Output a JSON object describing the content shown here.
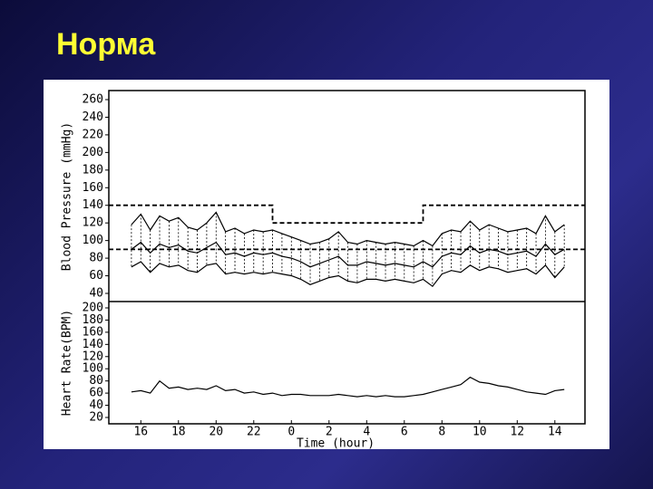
{
  "title": "Норма",
  "chart_data": [
    {
      "type": "line",
      "y_label": "Blood Pressure (mmHg)",
      "x": [
        15.5,
        16,
        16.5,
        17,
        17.5,
        18,
        18.5,
        19,
        19.5,
        20,
        20.5,
        21,
        21.5,
        22,
        22.5,
        23,
        23.5,
        24,
        24.5,
        25,
        25.5,
        26,
        26.5,
        27,
        27.5,
        28,
        28.5,
        29,
        29.5,
        30,
        30.5,
        31,
        31.5,
        32,
        32.5,
        33,
        33.5,
        34,
        34.5,
        35,
        35.5,
        36,
        36.5,
        37,
        37.5,
        38,
        38.5
      ],
      "series": [
        {
          "color": "#000000",
          "values": [
            118,
            130,
            112,
            128,
            122,
            126,
            115,
            112,
            120,
            132,
            110,
            114,
            108,
            112,
            110,
            112,
            108,
            104,
            100,
            96,
            98,
            102,
            110,
            98,
            96,
            100,
            98,
            96,
            98,
            96,
            94,
            100,
            94,
            108,
            112,
            110,
            122,
            112,
            118,
            114,
            110,
            112,
            114,
            108,
            128,
            110,
            118
          ]
        },
        {
          "color": "#000000",
          "values": [
            90,
            98,
            86,
            96,
            92,
            95,
            88,
            86,
            92,
            98,
            84,
            86,
            82,
            86,
            84,
            86,
            82,
            80,
            76,
            70,
            74,
            78,
            82,
            72,
            72,
            76,
            74,
            72,
            74,
            72,
            70,
            76,
            70,
            82,
            86,
            84,
            94,
            86,
            90,
            88,
            84,
            86,
            88,
            82,
            96,
            84,
            90
          ]
        },
        {
          "color": "#000000",
          "values": [
            70,
            76,
            64,
            74,
            70,
            72,
            66,
            64,
            72,
            74,
            62,
            64,
            62,
            64,
            62,
            64,
            62,
            60,
            56,
            50,
            54,
            58,
            60,
            54,
            52,
            56,
            56,
            54,
            56,
            54,
            52,
            56,
            48,
            62,
            66,
            64,
            72,
            66,
            70,
            68,
            64,
            66,
            68,
            62,
            72,
            58,
            70
          ]
        },
        {
          "color": "#000000",
          "dash": true,
          "x": [
            14.3,
            23,
            23,
            31,
            31,
            39.6
          ],
          "values": [
            140,
            140,
            120,
            120,
            140,
            140
          ]
        },
        {
          "color": "#000000",
          "dash": true,
          "x": [
            14.3,
            39.6
          ],
          "values": [
            90,
            90
          ]
        }
      ],
      "range_between": [
        0,
        2
      ],
      "xlim": [
        14.3,
        39.6
      ],
      "ylim": [
        40,
        260
      ],
      "yticks": [
        40,
        60,
        80,
        100,
        120,
        140,
        160,
        180,
        200,
        220,
        240,
        260
      ]
    },
    {
      "type": "line",
      "y_label": "Heart Rate(BPM)",
      "x_label": "Time (hour)",
      "x": [
        15.5,
        16,
        16.5,
        17,
        17.5,
        18,
        18.5,
        19,
        19.5,
        20,
        20.5,
        21,
        21.5,
        22,
        22.5,
        23,
        23.5,
        24,
        24.5,
        25,
        25.5,
        26,
        26.5,
        27,
        27.5,
        28,
        28.5,
        29,
        29.5,
        30,
        30.5,
        31,
        31.5,
        32,
        32.5,
        33,
        33.5,
        34,
        34.5,
        35,
        35.5,
        36,
        36.5,
        37,
        37.5,
        38,
        38.5
      ],
      "series": [
        {
          "color": "#000000",
          "values": [
            62,
            64,
            60,
            80,
            68,
            70,
            66,
            68,
            66,
            72,
            64,
            66,
            60,
            62,
            58,
            60,
            56,
            58,
            58,
            56,
            56,
            56,
            58,
            56,
            54,
            56,
            54,
            56,
            54,
            54,
            56,
            58,
            62,
            66,
            70,
            74,
            86,
            78,
            76,
            72,
            70,
            66,
            62,
            60,
            58,
            64,
            66
          ]
        }
      ],
      "xlim": [
        14.3,
        39.6
      ],
      "xticks": [
        16,
        18,
        20,
        22,
        {
          "value": 24,
          "label": "0"
        },
        {
          "value": 26,
          "label": "2"
        },
        {
          "value": 28,
          "label": "4"
        },
        {
          "value": 30,
          "label": "6"
        },
        {
          "value": 32,
          "label": "8"
        },
        {
          "value": 34,
          "label": "10"
        },
        {
          "value": 36,
          "label": "12"
        },
        {
          "value": 38,
          "label": "14"
        }
      ],
      "ylim": [
        20,
        200
      ],
      "yticks": [
        20,
        40,
        60,
        80,
        100,
        120,
        140,
        160,
        180,
        200
      ]
    }
  ]
}
